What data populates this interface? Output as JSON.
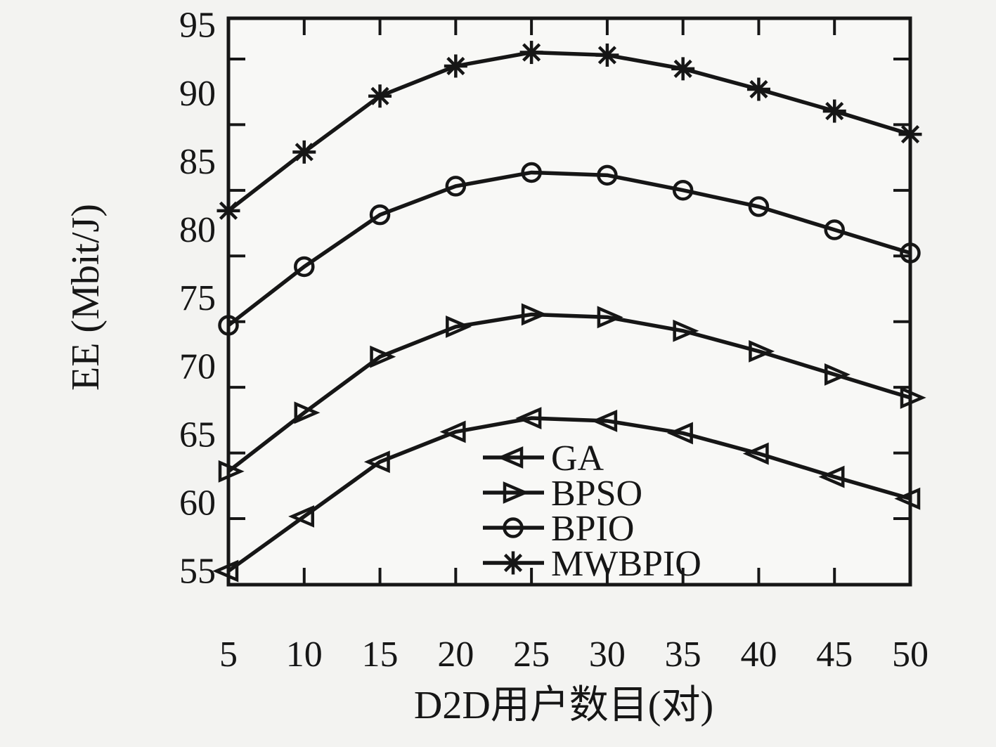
{
  "figure": {
    "background_color": "#f3f3f1",
    "plot_background_color": "#f8f8f6",
    "line_color": "#161616",
    "axes": {
      "x": {
        "title": "D2D用户数目(对)",
        "tick_labels": [
          "5",
          "10",
          "15",
          "20",
          "25",
          "30",
          "35",
          "40",
          "45",
          "50"
        ],
        "tick_values": [
          5,
          10,
          15,
          20,
          25,
          30,
          35,
          40,
          45,
          50
        ],
        "inner_tick_values": [
          10,
          15,
          20,
          25,
          30,
          35,
          40,
          45
        ],
        "range": [
          5,
          50
        ]
      },
      "y": {
        "title": "EE (Mbit/J)",
        "tick_labels": [
          "95",
          "90",
          "85",
          "80",
          "75",
          "70",
          "65",
          "60",
          "55"
        ],
        "tick_values": [
          95,
          90,
          85,
          80,
          75,
          70,
          65,
          60,
          55
        ],
        "minor_tick_values": [
          92.5,
          87.5,
          82.5,
          77.5,
          72.5,
          67.5,
          62.5,
          57.5
        ],
        "range": [
          54.0,
          95.5
        ]
      }
    },
    "legend": {
      "position": "inside-bottom-right",
      "entries": [
        {
          "label": "GA",
          "marker": "triangle-left-icon"
        },
        {
          "label": "BPSO",
          "marker": "triangle-right-icon"
        },
        {
          "label": "BPIO",
          "marker": "circle-icon"
        },
        {
          "label": "MWBPIO",
          "marker": "asterisk-icon"
        }
      ]
    }
  },
  "chart_data": {
    "type": "line",
    "title": "",
    "xlabel": "D2D用户数目(对)",
    "ylabel": "EE (Mbit/J)",
    "x": [
      5,
      10,
      15,
      20,
      25,
      30,
      35,
      40,
      45,
      50
    ],
    "xlim": [
      5,
      50
    ],
    "ylim": [
      54.0,
      95.5
    ],
    "grid": false,
    "legend_position": "inside-bottom-right",
    "series": [
      {
        "name": "GA",
        "marker": "triangle-left",
        "values": [
          55.0,
          59.0,
          63.0,
          65.2,
          66.2,
          66.0,
          65.1,
          63.6,
          61.9,
          60.3
        ]
      },
      {
        "name": "BPSO",
        "marker": "triangle-right",
        "values": [
          62.3,
          66.6,
          70.7,
          72.9,
          73.8,
          73.6,
          72.6,
          71.1,
          69.4,
          67.7
        ]
      },
      {
        "name": "BPIO",
        "marker": "circle",
        "values": [
          73.0,
          77.3,
          81.1,
          83.2,
          84.2,
          84.0,
          82.9,
          81.7,
          80.0,
          78.3
        ]
      },
      {
        "name": "MWBPIO",
        "marker": "asterisk",
        "values": [
          81.4,
          85.7,
          89.8,
          92.0,
          93.0,
          92.8,
          91.8,
          90.3,
          88.7,
          87.0
        ]
      }
    ]
  }
}
